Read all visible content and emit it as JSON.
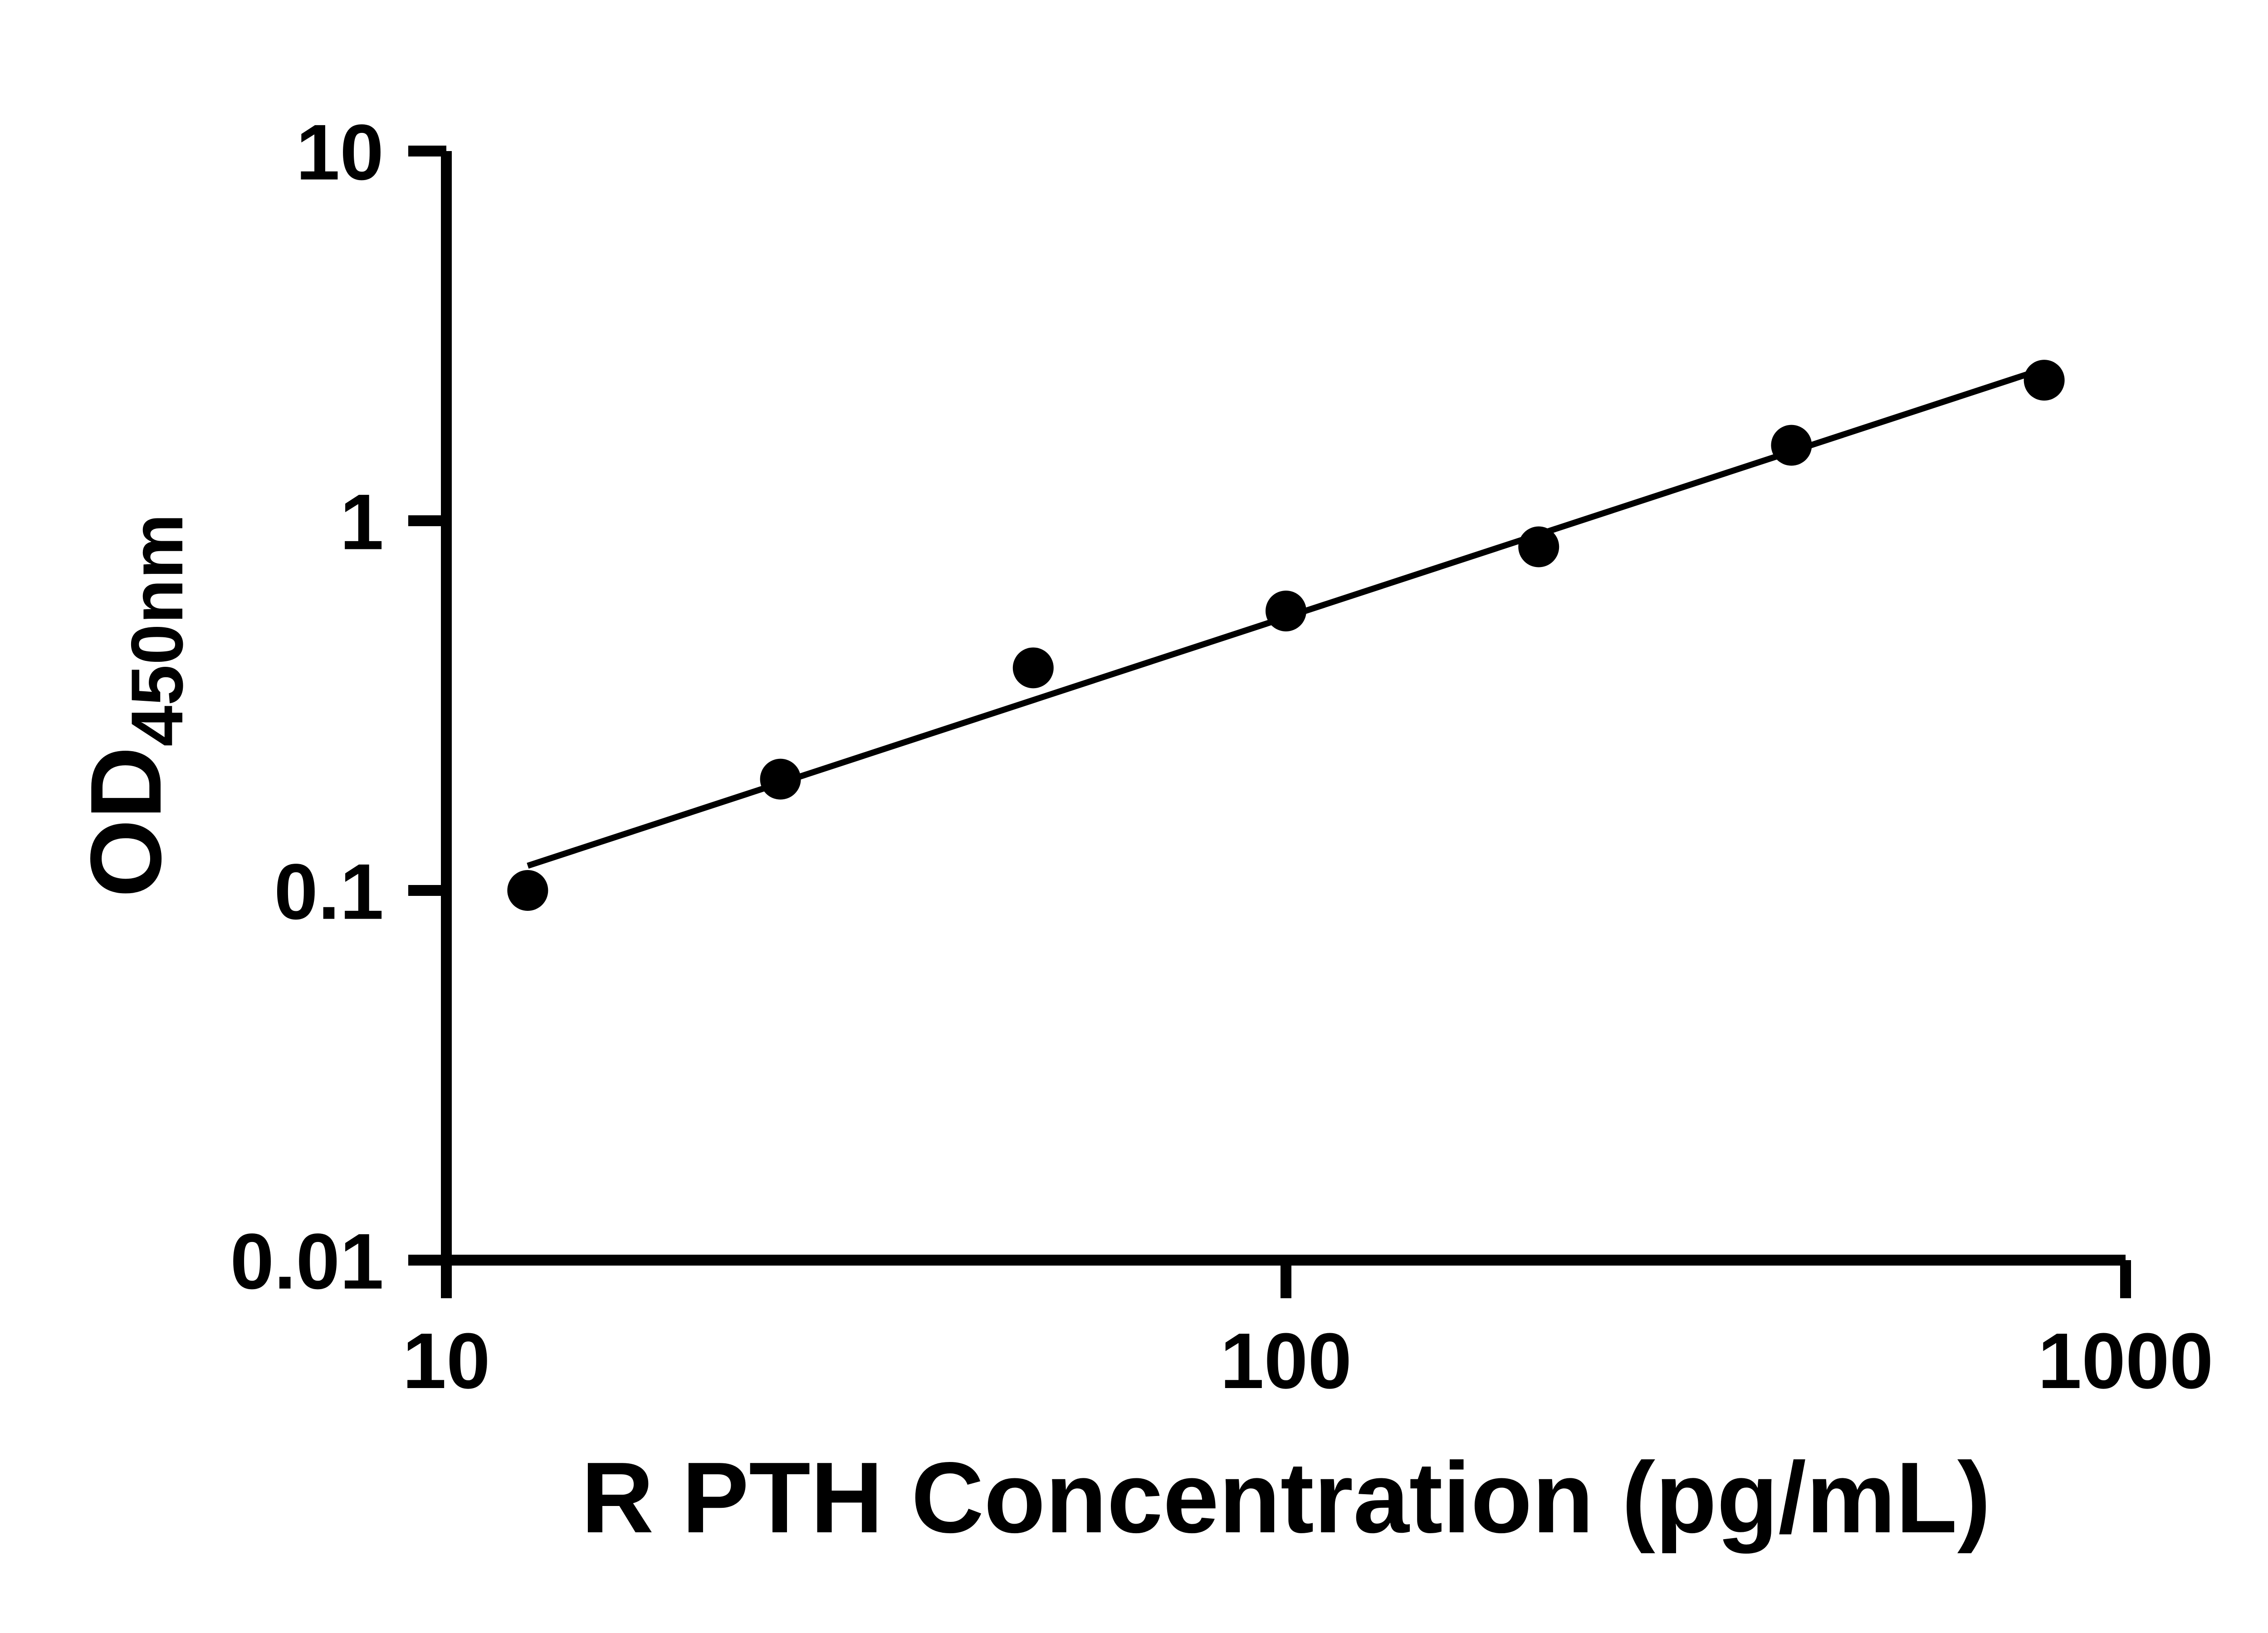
{
  "chart_data": {
    "type": "scatter",
    "title": "",
    "xlabel": "R PTH Concentration (pg/mL)",
    "ylabel": "OD",
    "ylabel_subscript": "450nm",
    "x_scale": "log",
    "y_scale": "log",
    "xlim": [
      10,
      1000
    ],
    "ylim": [
      0.01,
      10
    ],
    "grid": false,
    "legend": "none",
    "x": [
      12.5,
      25,
      50,
      100,
      200,
      400,
      800
    ],
    "y": [
      0.1,
      0.2,
      0.4,
      0.57,
      0.85,
      1.6,
      2.4
    ],
    "fit": "linear (log-log)",
    "x_ticks": [
      {
        "value": 10,
        "label": "10"
      },
      {
        "value": 100,
        "label": "100"
      },
      {
        "value": 1000,
        "label": "1000"
      }
    ],
    "y_ticks": [
      {
        "value": 0.01,
        "label": "0.01"
      },
      {
        "value": 0.1,
        "label": "0.1"
      },
      {
        "value": 1,
        "label": "1"
      },
      {
        "value": 10,
        "label": "10"
      }
    ],
    "colors": {
      "marker": "#000000",
      "line": "#000000",
      "axis": "#000000",
      "background": "#ffffff"
    }
  }
}
